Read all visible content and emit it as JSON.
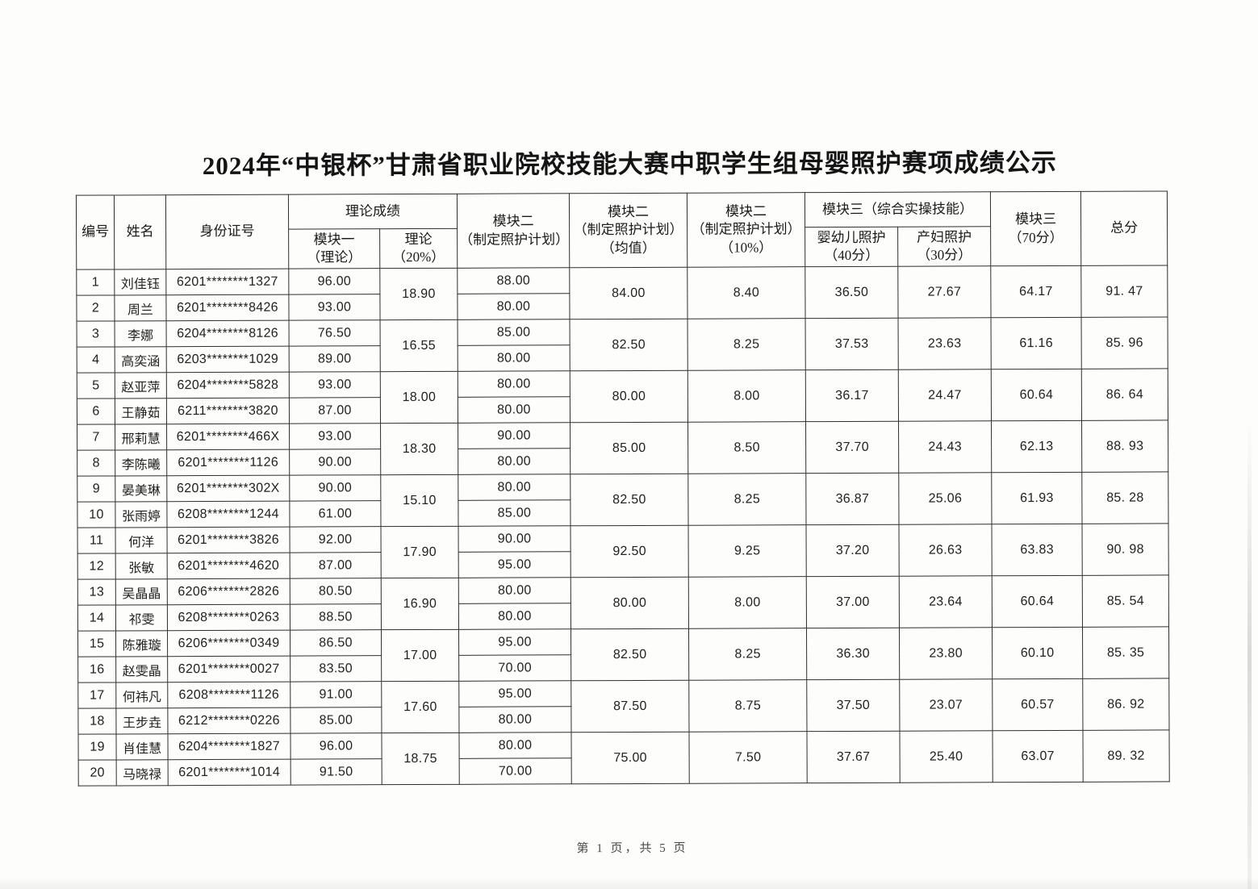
{
  "page": {
    "title": "2024年“中银杯”甘肃省职业院校技能大赛中职学生组母婴照护赛项成绩公示",
    "footer": "第 1 页，共 5 页"
  },
  "table": {
    "headers": {
      "no": "编号",
      "name": "姓名",
      "id_number": "身份证号",
      "theory_group": "理论成绩",
      "module1_theory": "模块一\n（理论）",
      "theory_20": "理论\n（20%）",
      "module2_plan": "模块二\n（制定照护计划）",
      "module2_avg": "模块二\n（制定照护计划）\n（均值）",
      "module2_10": "模块二\n（制定照护计划）\n（10%）",
      "module3_group": "模块三（综合实操技能）",
      "infant_care": "婴幼儿照护\n（40分）",
      "maternal_care": "产妇照护\n（30分）",
      "module3_70": "模块三\n（70分）",
      "total": "总分"
    },
    "pairs": [
      {
        "rows": [
          {
            "no": "1",
            "name": "刘佳钰",
            "id": "6201********1327",
            "module1": "96.00",
            "module2": "88.00"
          },
          {
            "no": "2",
            "name": "周兰",
            "id": "6201********8426",
            "module1": "93.00",
            "module2": "80.00"
          }
        ],
        "theory_20": "18.90",
        "module2_avg": "84.00",
        "module2_10": "8.40",
        "infant": "36.50",
        "maternal": "27.67",
        "module3_70": "64.17",
        "total": "91. 47"
      },
      {
        "rows": [
          {
            "no": "3",
            "name": "李娜",
            "id": "6204********8126",
            "module1": "76.50",
            "module2": "85.00"
          },
          {
            "no": "4",
            "name": "高奕涵",
            "id": "6203********1029",
            "module1": "89.00",
            "module2": "80.00"
          }
        ],
        "theory_20": "16.55",
        "module2_avg": "82.50",
        "module2_10": "8.25",
        "infant": "37.53",
        "maternal": "23.63",
        "module3_70": "61.16",
        "total": "85. 96"
      },
      {
        "rows": [
          {
            "no": "5",
            "name": "赵亚萍",
            "id": "6204********5828",
            "module1": "93.00",
            "module2": "80.00"
          },
          {
            "no": "6",
            "name": "王静茹",
            "id": "6211********3820",
            "module1": "87.00",
            "module2": "80.00"
          }
        ],
        "theory_20": "18.00",
        "module2_avg": "80.00",
        "module2_10": "8.00",
        "infant": "36.17",
        "maternal": "24.47",
        "module3_70": "60.64",
        "total": "86. 64"
      },
      {
        "rows": [
          {
            "no": "7",
            "name": "邢莉慧",
            "id": "6201********466X",
            "module1": "93.00",
            "module2": "90.00"
          },
          {
            "no": "8",
            "name": "李陈曦",
            "id": "6201********1126",
            "module1": "90.00",
            "module2": "80.00"
          }
        ],
        "theory_20": "18.30",
        "module2_avg": "85.00",
        "module2_10": "8.50",
        "infant": "37.70",
        "maternal": "24.43",
        "module3_70": "62.13",
        "total": "88. 93"
      },
      {
        "rows": [
          {
            "no": "9",
            "name": "晏美琳",
            "id": "6201********302X",
            "module1": "90.00",
            "module2": "80.00"
          },
          {
            "no": "10",
            "name": "张雨婷",
            "id": "6208********1244",
            "module1": "61.00",
            "module2": "85.00"
          }
        ],
        "theory_20": "15.10",
        "module2_avg": "82.50",
        "module2_10": "8.25",
        "infant": "36.87",
        "maternal": "25.06",
        "module3_70": "61.93",
        "total": "85. 28"
      },
      {
        "rows": [
          {
            "no": "11",
            "name": "何洋",
            "id": "6201********3826",
            "module1": "92.00",
            "module2": "90.00"
          },
          {
            "no": "12",
            "name": "张敏",
            "id": "6201********4620",
            "module1": "87.00",
            "module2": "95.00"
          }
        ],
        "theory_20": "17.90",
        "module2_avg": "92.50",
        "module2_10": "9.25",
        "infant": "37.20",
        "maternal": "26.63",
        "module3_70": "63.83",
        "total": "90. 98"
      },
      {
        "rows": [
          {
            "no": "13",
            "name": "吴晶晶",
            "id": "6206********2826",
            "module1": "80.50",
            "module2": "80.00"
          },
          {
            "no": "14",
            "name": "祁雯",
            "id": "6208********0263",
            "module1": "88.50",
            "module2": "80.00"
          }
        ],
        "theory_20": "16.90",
        "module2_avg": "80.00",
        "module2_10": "8.00",
        "infant": "37.00",
        "maternal": "23.64",
        "module3_70": "60.64",
        "total": "85. 54"
      },
      {
        "rows": [
          {
            "no": "15",
            "name": "陈雅璇",
            "id": "6206********0349",
            "module1": "86.50",
            "module2": "95.00"
          },
          {
            "no": "16",
            "name": "赵雯晶",
            "id": "6201********0027",
            "module1": "83.50",
            "module2": "70.00"
          }
        ],
        "theory_20": "17.00",
        "module2_avg": "82.50",
        "module2_10": "8.25",
        "infant": "36.30",
        "maternal": "23.80",
        "module3_70": "60.10",
        "total": "85. 35"
      },
      {
        "rows": [
          {
            "no": "17",
            "name": "何祎凡",
            "id": "6208********1126",
            "module1": "91.00",
            "module2": "95.00"
          },
          {
            "no": "18",
            "name": "王步垚",
            "id": "6212********0226",
            "module1": "85.00",
            "module2": "80.00"
          }
        ],
        "theory_20": "17.60",
        "module2_avg": "87.50",
        "module2_10": "8.75",
        "infant": "37.50",
        "maternal": "23.07",
        "module3_70": "60.57",
        "total": "86. 92"
      },
      {
        "rows": [
          {
            "no": "19",
            "name": "肖佳慧",
            "id": "6204********1827",
            "module1": "96.00",
            "module2": "80.00"
          },
          {
            "no": "20",
            "name": "马晓禄",
            "id": "6201********1014",
            "module1": "91.50",
            "module2": "70.00"
          }
        ],
        "theory_20": "18.75",
        "module2_avg": "75.00",
        "module2_10": "7.50",
        "infant": "37.67",
        "maternal": "25.40",
        "module3_70": "63.07",
        "total": "89. 32"
      }
    ]
  }
}
